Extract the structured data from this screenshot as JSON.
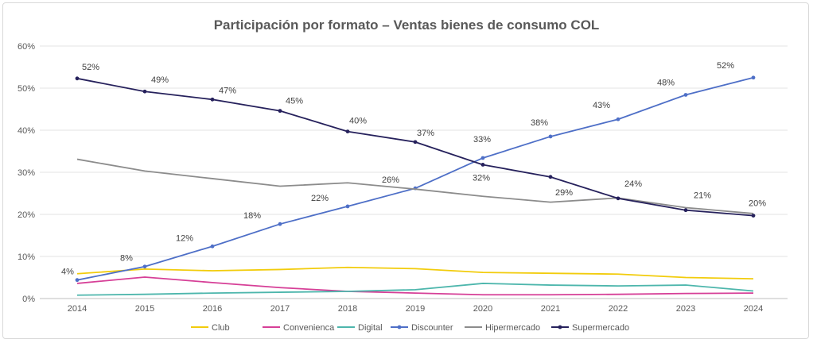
{
  "chart_data": {
    "type": "line",
    "title": "Participación por formato – Ventas bienes de consumo COL",
    "x": [
      "2014",
      "2015",
      "2016",
      "2017",
      "2018",
      "2019",
      "2020",
      "2021",
      "2022",
      "2023",
      "2024"
    ],
    "ylim": [
      0,
      60
    ],
    "yticks": [
      "0%",
      "10%",
      "20%",
      "30%",
      "40%",
      "50%",
      "60%"
    ],
    "grid": true,
    "legend_position": "bottom",
    "series": [
      {
        "name": "Club",
        "color": "#f2cc0c",
        "markers": false,
        "values": [
          5.9,
          7.0,
          6.6,
          6.9,
          7.4,
          7.1,
          6.2,
          6.0,
          5.8,
          5.0,
          4.7
        ]
      },
      {
        "name": "Convenienca",
        "color": "#d63f97",
        "markers": false,
        "values": [
          3.6,
          5.1,
          3.8,
          2.6,
          1.7,
          1.3,
          0.9,
          0.9,
          1.0,
          1.2,
          1.3
        ]
      },
      {
        "name": "Digital",
        "color": "#4db6ac",
        "markers": false,
        "values": [
          0.8,
          1.0,
          1.3,
          1.5,
          1.7,
          2.1,
          3.6,
          3.2,
          3.0,
          3.2,
          1.8
        ]
      },
      {
        "name": "Discounter",
        "color": "#4e6fc7",
        "markers": true,
        "values": [
          4.4,
          7.6,
          12.4,
          17.7,
          21.9,
          26.2,
          33.4,
          38.5,
          42.6,
          48.4,
          52.5
        ],
        "labels": [
          "4%",
          "8%",
          "12%",
          "18%",
          "22%",
          "26%",
          "33%",
          "38%",
          "43%",
          "48%",
          "52%"
        ]
      },
      {
        "name": "Hipermercado",
        "color": "#8c8c8c",
        "markers": false,
        "values": [
          33.1,
          30.3,
          28.5,
          26.7,
          27.5,
          26.0,
          24.3,
          22.9,
          23.9,
          21.6,
          20.2
        ]
      },
      {
        "name": "Supermercado",
        "color": "#26215c",
        "markers": true,
        "values": [
          52.3,
          49.2,
          47.3,
          44.6,
          39.7,
          37.2,
          31.8,
          28.9,
          23.8,
          21.0,
          19.7
        ],
        "labels": [
          "52%",
          "49%",
          "47%",
          "45%",
          "40%",
          "37%",
          "32%",
          "29%",
          "24%",
          "21%",
          "20%"
        ]
      }
    ]
  }
}
